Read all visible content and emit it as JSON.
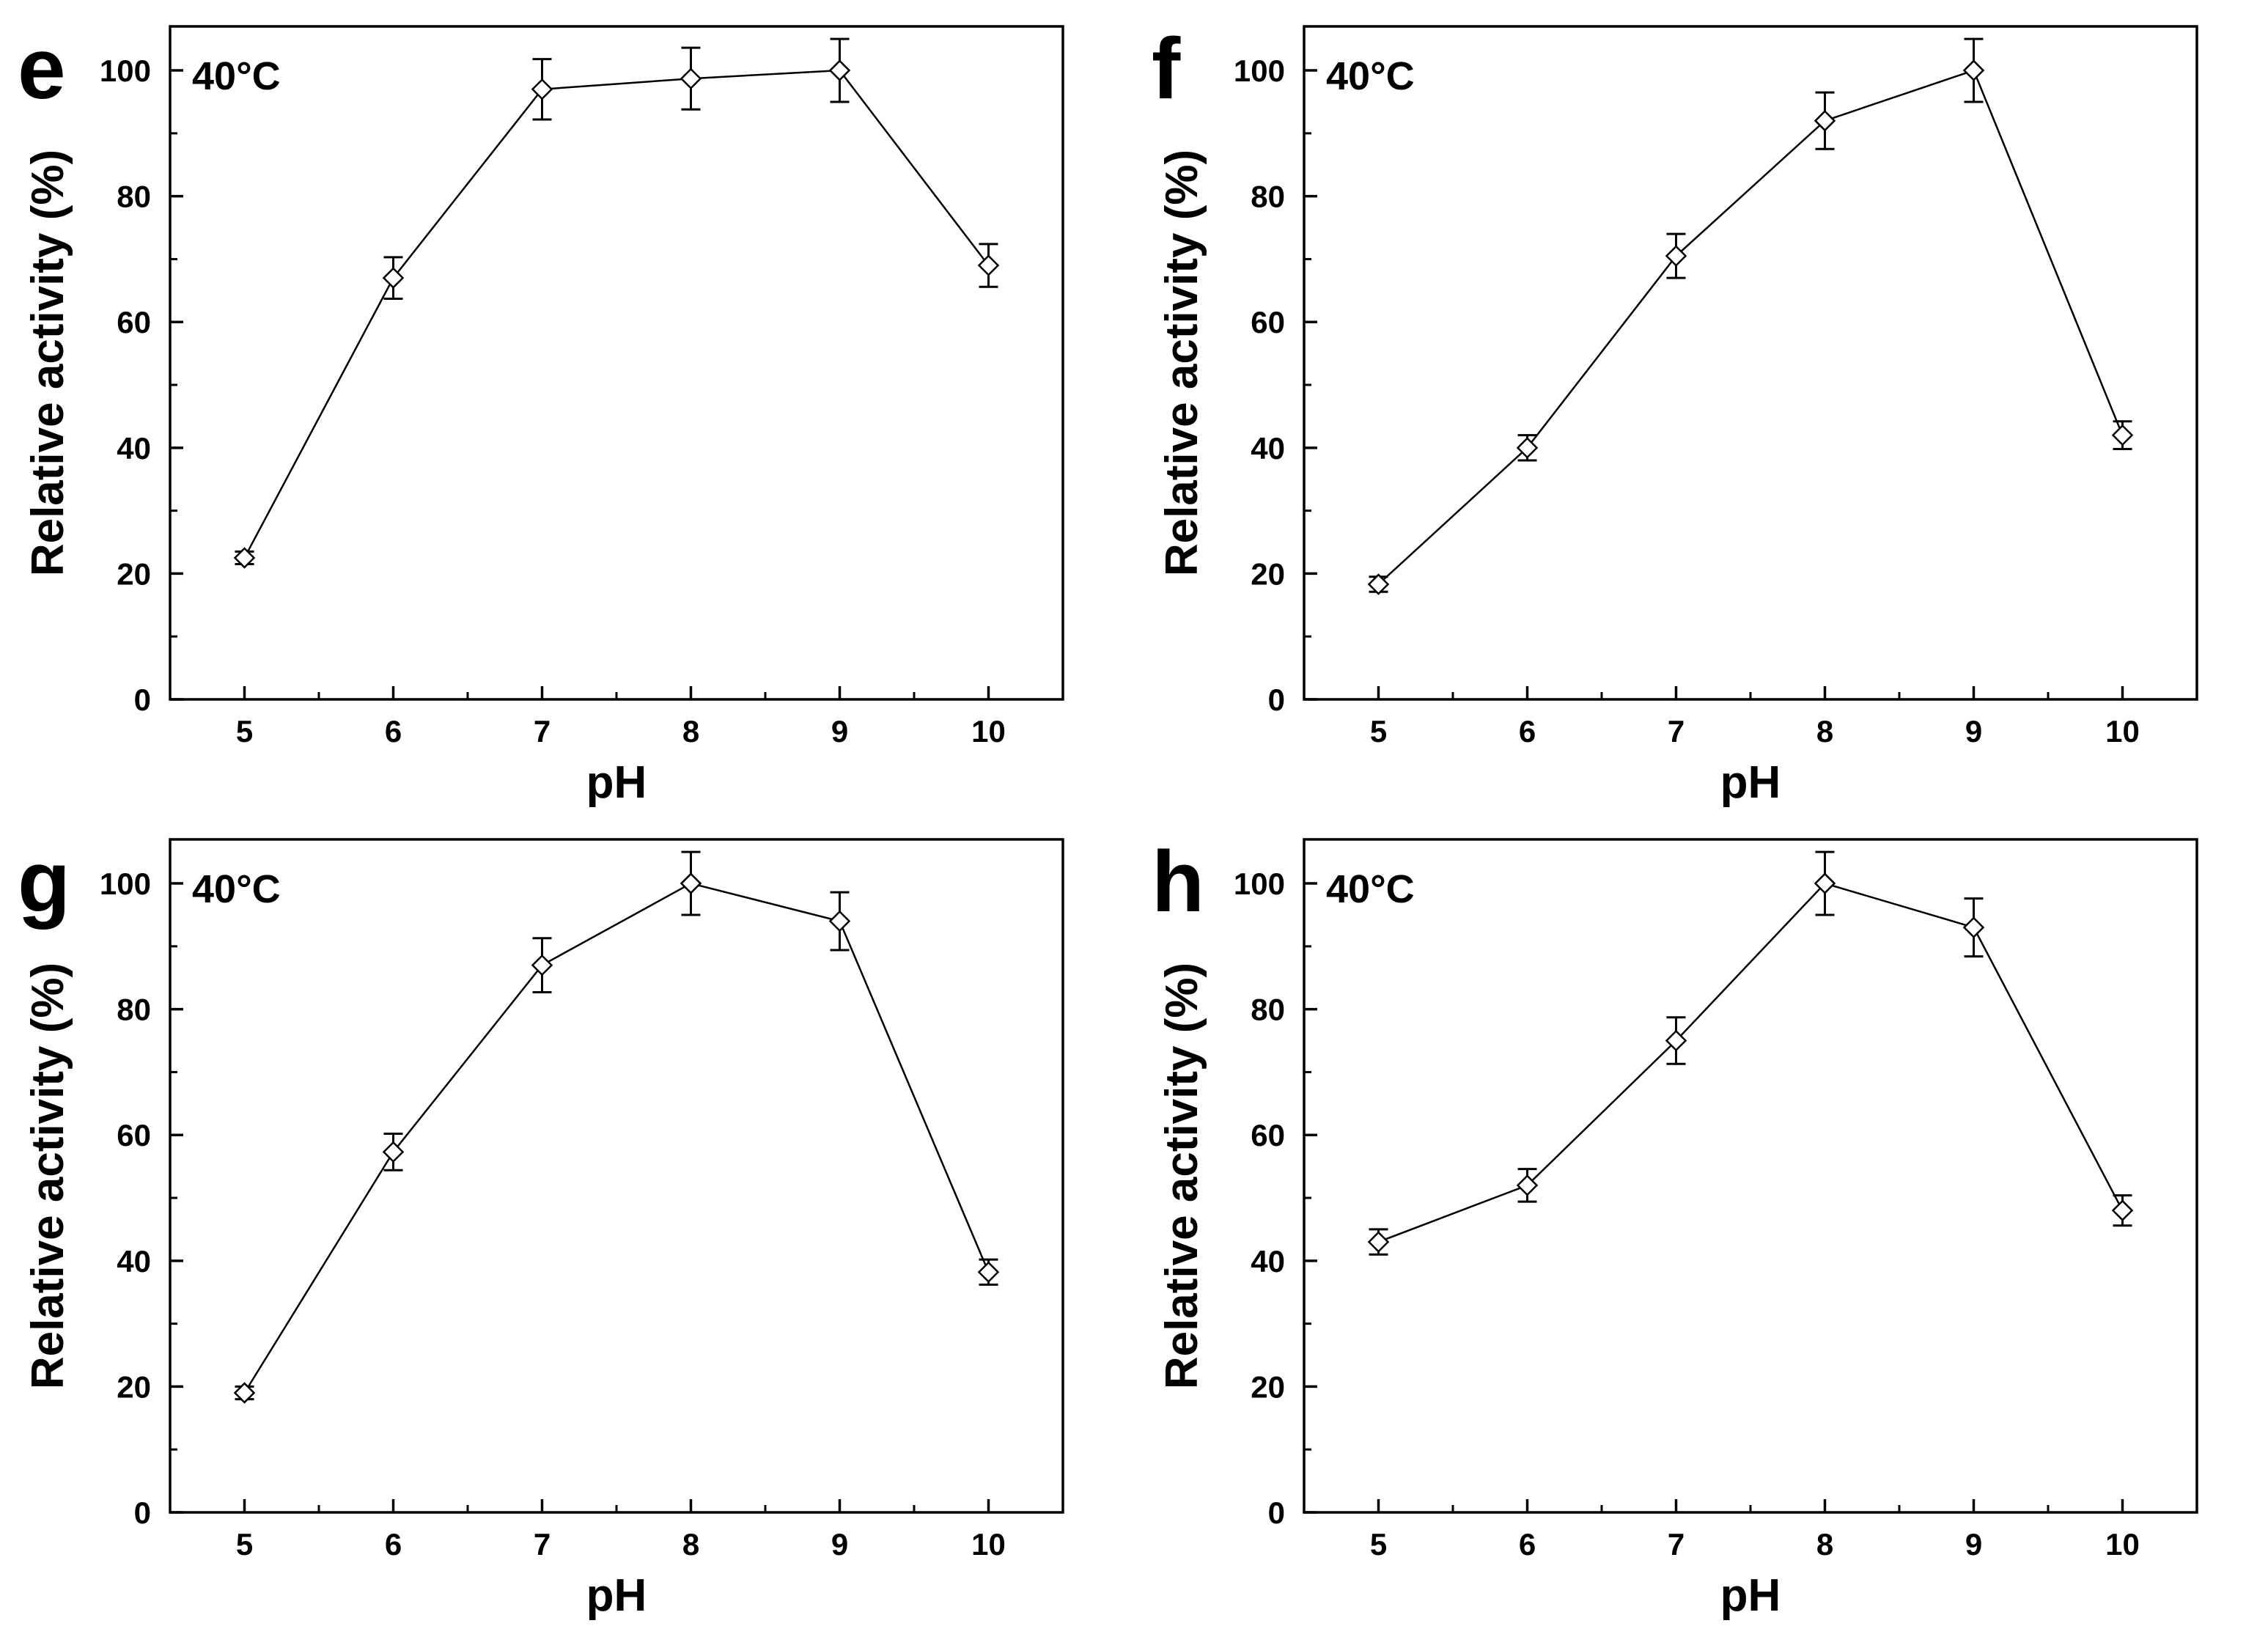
{
  "figure": {
    "panels": [
      "e",
      "f",
      "g",
      "h"
    ]
  },
  "chart_data": [
    {
      "type": "line",
      "panel_label": "e",
      "annotation": "40°C",
      "xlabel": "pH",
      "ylabel": "Relative activity (%)",
      "x": [
        5,
        6,
        7,
        8,
        9,
        10
      ],
      "xticks": [
        "5",
        "6",
        "7",
        "8",
        "9",
        "10"
      ],
      "values": [
        22.5,
        67,
        97,
        98.7,
        100,
        69
      ],
      "errors": [
        1.0,
        3.3,
        4.8,
        4.9,
        5.0,
        3.4
      ],
      "xlim": [
        4.5,
        10.5
      ],
      "ylim": [
        0,
        107
      ],
      "yticks": [
        "0",
        "20",
        "40",
        "60",
        "80",
        "100"
      ],
      "marker": "diamond-open"
    },
    {
      "type": "line",
      "panel_label": "f",
      "annotation": "40°C",
      "xlabel": "pH",
      "ylabel": "Relative activity (%)",
      "x": [
        5,
        6,
        7,
        8,
        9,
        10
      ],
      "xticks": [
        "5",
        "6",
        "7",
        "8",
        "9",
        "10"
      ],
      "values": [
        18.3,
        40,
        70.5,
        92,
        100,
        42
      ],
      "errors": [
        1.2,
        2.0,
        3.5,
        4.5,
        5.0,
        2.2
      ],
      "xlim": [
        4.5,
        10.5
      ],
      "ylim": [
        0,
        107
      ],
      "yticks": [
        "0",
        "20",
        "40",
        "60",
        "80",
        "100"
      ],
      "marker": "diamond-open"
    },
    {
      "type": "line",
      "panel_label": "g",
      "annotation": "40°C",
      "xlabel": "pH",
      "ylabel": "Relative activity (%)",
      "x": [
        5,
        6,
        7,
        8,
        9,
        10
      ],
      "xticks": [
        "5",
        "6",
        "7",
        "8",
        "9",
        "10"
      ],
      "values": [
        19,
        57.3,
        87,
        100,
        94,
        38.2
      ],
      "errors": [
        1.0,
        2.9,
        4.3,
        5.0,
        4.6,
        2.0
      ],
      "xlim": [
        4.5,
        10.5
      ],
      "ylim": [
        0,
        107
      ],
      "yticks": [
        "0",
        "20",
        "40",
        "60",
        "80",
        "100"
      ],
      "marker": "diamond-open"
    },
    {
      "type": "line",
      "panel_label": "h",
      "annotation": "40°C",
      "xlabel": "pH",
      "ylabel": "Relative activity (%)",
      "x": [
        5,
        6,
        7,
        8,
        9,
        10
      ],
      "xticks": [
        "5",
        "6",
        "7",
        "8",
        "9",
        "10"
      ],
      "values": [
        43,
        52,
        75,
        100,
        93,
        48
      ],
      "errors": [
        2.0,
        2.6,
        3.7,
        5.0,
        4.6,
        2.4
      ],
      "xlim": [
        4.5,
        10.5
      ],
      "ylim": [
        0,
        107
      ],
      "yticks": [
        "0",
        "20",
        "40",
        "60",
        "80",
        "100"
      ],
      "marker": "diamond-open"
    }
  ]
}
